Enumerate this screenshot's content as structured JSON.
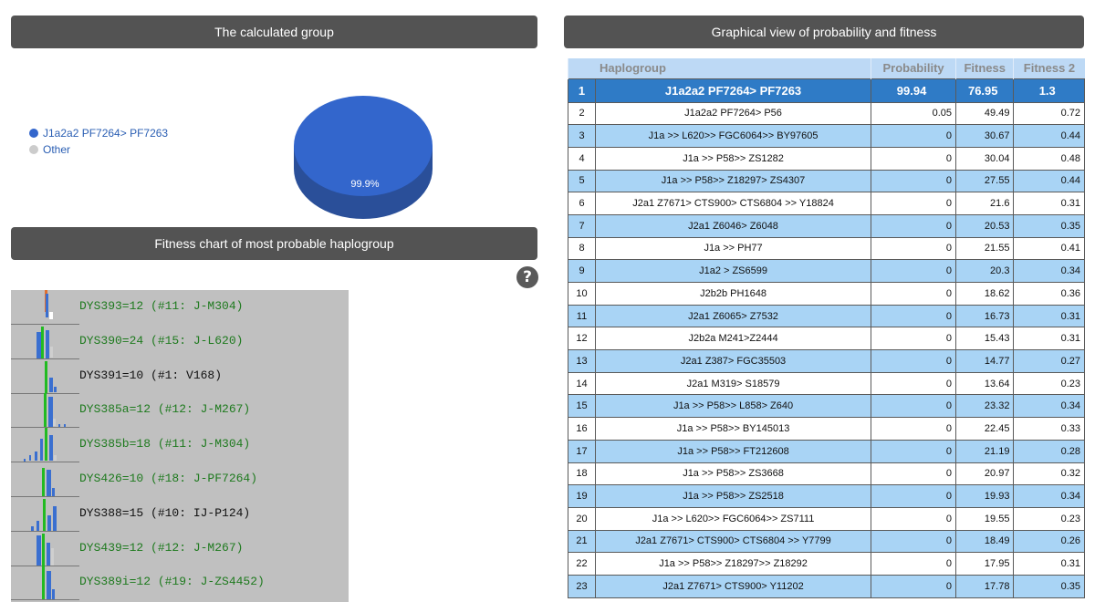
{
  "headers": {
    "calculated_group": "The calculated group",
    "graphical_view": "Graphical view of probability and fitness",
    "fitness_chart": "Fitness chart of most probable haplogroup"
  },
  "legend": {
    "items": [
      {
        "label": "J1a2a2 PF7264> PF7263",
        "color": "#3366cc"
      },
      {
        "label": "Other",
        "color": "#cccccc"
      }
    ]
  },
  "pie": {
    "label": "99.9%",
    "color": "#3366cc"
  },
  "help_icon": "?",
  "dys": [
    {
      "label": "DYS393=12 (#11: J-M304)",
      "color": "green"
    },
    {
      "label": "DYS390=24 (#15: J-L620)",
      "color": "green"
    },
    {
      "label": "DYS391=10 (#1: V168)",
      "color": "black"
    },
    {
      "label": "DYS385a=12 (#12: J-M267)",
      "color": "green"
    },
    {
      "label": "DYS385b=18 (#11: J-M304)",
      "color": "green"
    },
    {
      "label": "DYS426=10 (#18: J-PF7264)",
      "color": "green"
    },
    {
      "label": "DYS388=15 (#10: IJ-P124)",
      "color": "black"
    },
    {
      "label": "DYS439=12 (#12: J-M267)",
      "color": "green"
    },
    {
      "label": "DYS389i=12 (#19: J-ZS4452)",
      "color": "green"
    }
  ],
  "table": {
    "columns": [
      "Haplogroup",
      "Probability",
      "Fitness",
      "Fitness 2"
    ],
    "rows": [
      {
        "n": "1",
        "hap": "J1a2a2 PF7264> PF7263",
        "prob": "99.94",
        "fit": "76.95",
        "fit2": "1.3"
      },
      {
        "n": "2",
        "hap": "J1a2a2 PF7264> P56",
        "prob": "0.05",
        "fit": "49.49",
        "fit2": "0.72"
      },
      {
        "n": "3",
        "hap": "J1a >> L620>> FGC6064>> BY97605",
        "prob": "0",
        "fit": "30.67",
        "fit2": "0.44"
      },
      {
        "n": "4",
        "hap": "J1a >> P58>> ZS1282",
        "prob": "0",
        "fit": "30.04",
        "fit2": "0.48"
      },
      {
        "n": "5",
        "hap": "J1a >> P58>> Z18297> ZS4307",
        "prob": "0",
        "fit": "27.55",
        "fit2": "0.44"
      },
      {
        "n": "6",
        "hap": "J2a1 Z7671> CTS900> CTS6804 >> Y18824",
        "prob": "0",
        "fit": "21.6",
        "fit2": "0.31"
      },
      {
        "n": "7",
        "hap": "J2a1 Z6046> Z6048",
        "prob": "0",
        "fit": "20.53",
        "fit2": "0.35"
      },
      {
        "n": "8",
        "hap": "J1a >> PH77",
        "prob": "0",
        "fit": "21.55",
        "fit2": "0.41"
      },
      {
        "n": "9",
        "hap": "J1a2 > ZS6599",
        "prob": "0",
        "fit": "20.3",
        "fit2": "0.34"
      },
      {
        "n": "10",
        "hap": "J2b2b PH1648",
        "prob": "0",
        "fit": "18.62",
        "fit2": "0.36"
      },
      {
        "n": "11",
        "hap": "J2a1 Z6065> Z7532",
        "prob": "0",
        "fit": "16.73",
        "fit2": "0.31"
      },
      {
        "n": "12",
        "hap": "J2b2a M241>Z2444",
        "prob": "0",
        "fit": "15.43",
        "fit2": "0.31"
      },
      {
        "n": "13",
        "hap": "J2a1 Z387> FGC35503",
        "prob": "0",
        "fit": "14.77",
        "fit2": "0.27"
      },
      {
        "n": "14",
        "hap": "J2a1 M319> S18579",
        "prob": "0",
        "fit": "13.64",
        "fit2": "0.23"
      },
      {
        "n": "15",
        "hap": "J1a >> P58>> L858> Z640",
        "prob": "0",
        "fit": "23.32",
        "fit2": "0.34"
      },
      {
        "n": "16",
        "hap": "J1a >> P58>> BY145013",
        "prob": "0",
        "fit": "22.45",
        "fit2": "0.33"
      },
      {
        "n": "17",
        "hap": "J1a >> P58>> FT212608",
        "prob": "0",
        "fit": "21.19",
        "fit2": "0.28"
      },
      {
        "n": "18",
        "hap": "J1a >> P58>> ZS3668",
        "prob": "0",
        "fit": "20.97",
        "fit2": "0.32"
      },
      {
        "n": "19",
        "hap": "J1a >> P58>> ZS2518",
        "prob": "0",
        "fit": "19.93",
        "fit2": "0.34"
      },
      {
        "n": "20",
        "hap": "J1a >> L620>> FGC6064>> ZS7111",
        "prob": "0",
        "fit": "19.55",
        "fit2": "0.23"
      },
      {
        "n": "21",
        "hap": "J2a1 Z7671> CTS900> CTS6804 >> Y7799",
        "prob": "0",
        "fit": "18.49",
        "fit2": "0.26"
      },
      {
        "n": "22",
        "hap": "J1a >> P58>> Z18297>> Z18292",
        "prob": "0",
        "fit": "17.95",
        "fit2": "0.31"
      },
      {
        "n": "23",
        "hap": "J2a1 Z7671> CTS900> Y11202",
        "prob": "0",
        "fit": "17.78",
        "fit2": "0.35"
      }
    ]
  }
}
